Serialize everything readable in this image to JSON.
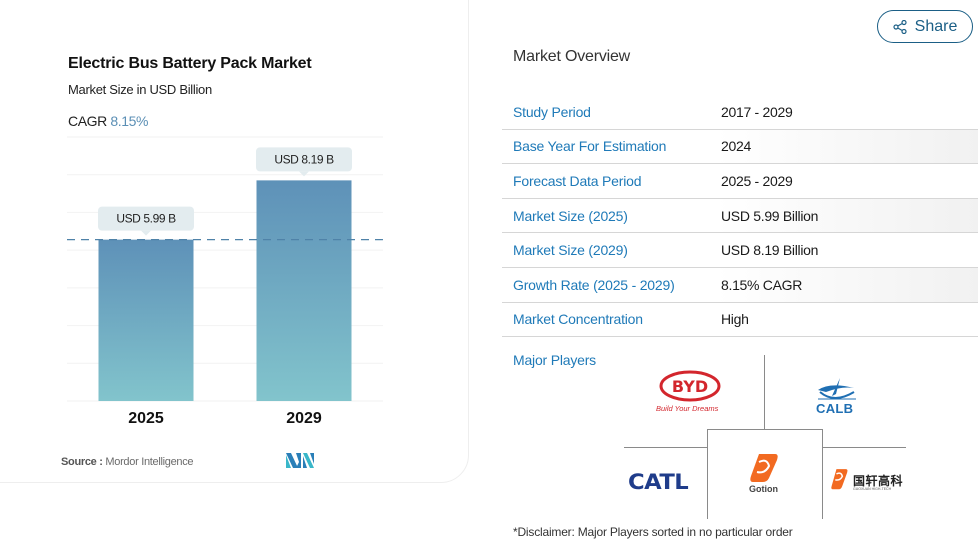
{
  "chart_card": {
    "title": "Electric Bus Battery Pack Market",
    "subtitle": "Market Size in USD Billion",
    "cagr_label": "CAGR",
    "cagr_value": "8.15%",
    "source_label": "Source :",
    "source_value": "Mordor Intelligence",
    "logo": "mordor-intelligence-logo"
  },
  "chart_data": {
    "type": "bar",
    "title": "Electric Bus Battery Pack Market",
    "subtitle": "Market Size in USD Billion",
    "categories": [
      "2025",
      "2029"
    ],
    "values": [
      5.99,
      8.19
    ],
    "data_labels": [
      "USD 5.99 B",
      "USD 8.19 B"
    ],
    "xlabel": "",
    "ylabel": "",
    "ylim": [
      0,
      9.8
    ],
    "reference_line": {
      "value": 5.99,
      "style": "dashed"
    },
    "grid": true,
    "colors": {
      "bar_top": "#5e91b8",
      "bar_bottom": "#82c4cc",
      "label_bg": "#e3ecef",
      "reference": "#4f82a8"
    }
  },
  "share": {
    "label": "Share",
    "icon": "share-icon",
    "color": "#1b5f86"
  },
  "overview": {
    "title": "Market Overview",
    "rows": [
      {
        "label": "Study Period",
        "value": "2017 - 2029"
      },
      {
        "label": "Base Year For Estimation",
        "value": "2024"
      },
      {
        "label": "Forecast Data Period",
        "value": "2025 - 2029"
      },
      {
        "label": "Market Size (2025)",
        "value": "USD 5.99 Billion"
      },
      {
        "label": "Market Size (2029)",
        "value": "USD 8.19 Billion"
      },
      {
        "label": "Growth Rate (2025 - 2029)",
        "value": "8.15% CAGR"
      },
      {
        "label": "Market Concentration",
        "value": "High"
      }
    ],
    "label_color": "#1f7ab8"
  },
  "players": {
    "label": "Major Players",
    "logos": {
      "byd": {
        "name": "BYD",
        "tagline": "Build Your Dreams"
      },
      "calb": {
        "name": "CALB"
      },
      "catl": {
        "name": "CATL"
      },
      "gotion": {
        "name": "Gotion"
      },
      "guoxuan": {
        "name_cn": "国轩高科",
        "name_en": "GUOXUAN HIGH-TECH"
      }
    },
    "disclaimer": "*Disclaimer: Major Players sorted in no particular order"
  }
}
